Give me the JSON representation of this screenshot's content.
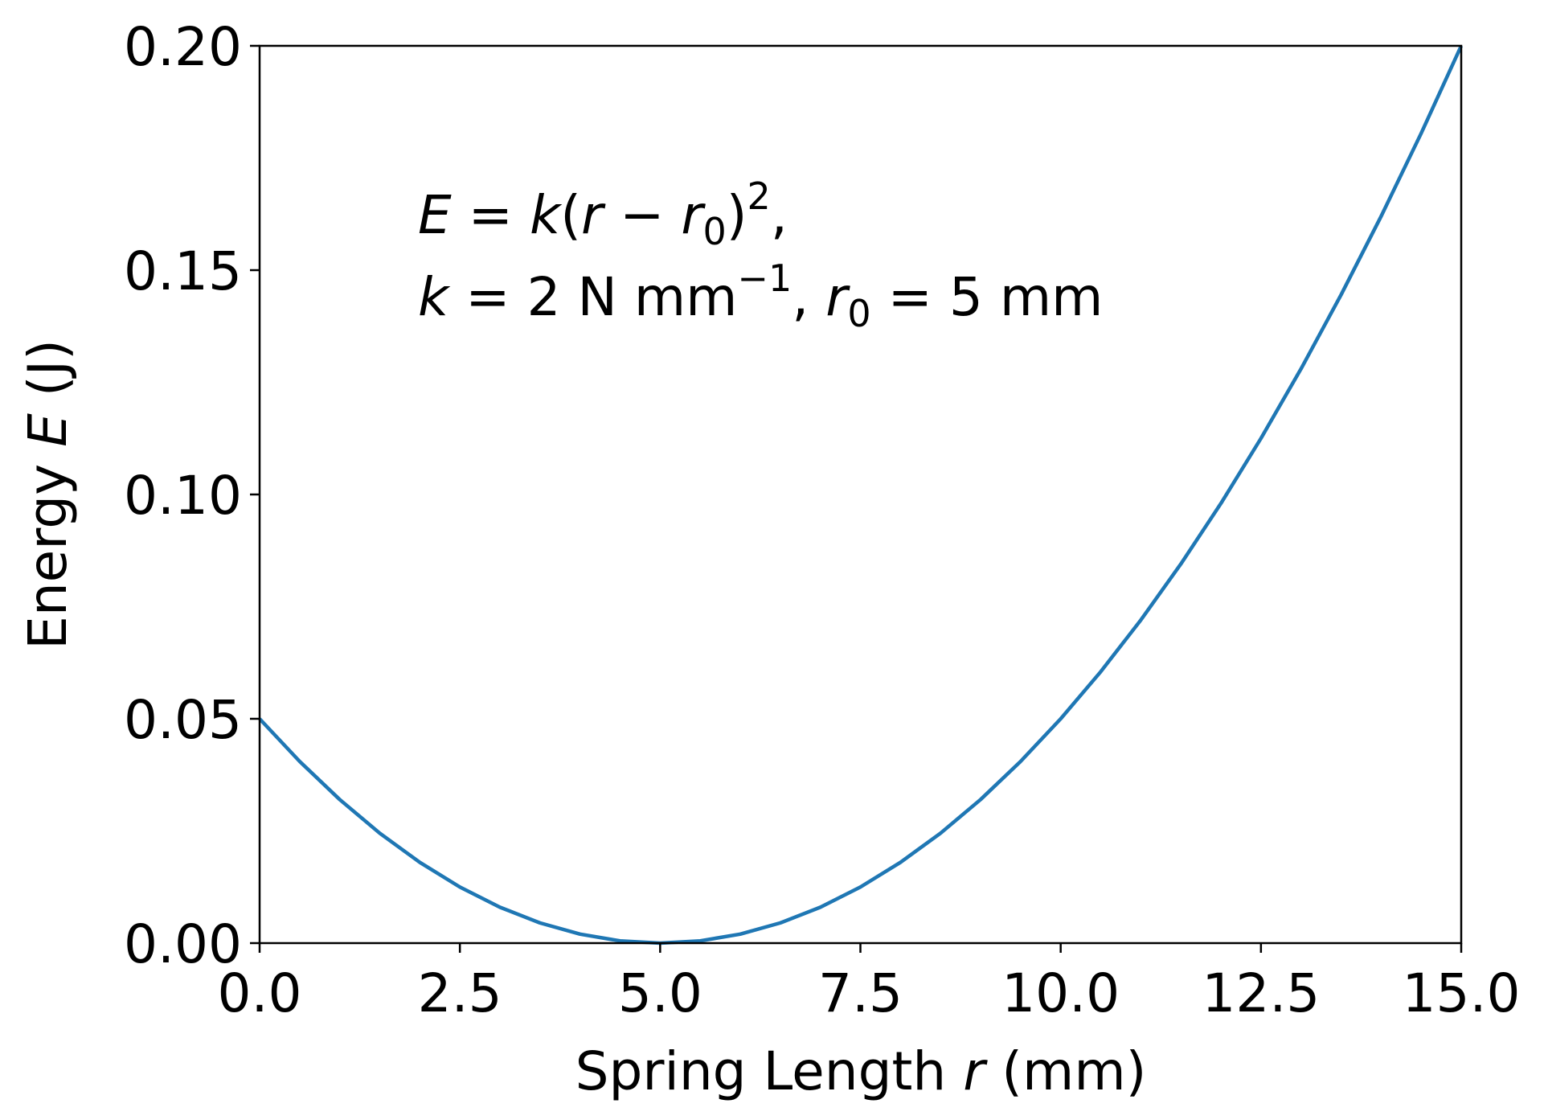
{
  "chart_data": {
    "type": "line",
    "title": "",
    "xlabel": {
      "prefix": "Spring Length ",
      "var": "r",
      "suffix": " (mm)"
    },
    "ylabel": {
      "prefix": "Energy ",
      "var": "E",
      "suffix": " (J)"
    },
    "xlim": [
      0,
      15
    ],
    "ylim": [
      0,
      0.2
    ],
    "x_ticks": [
      "0.0",
      "2.5",
      "5.0",
      "7.5",
      "10.0",
      "12.5",
      "15.0"
    ],
    "y_ticks": [
      "0.00",
      "0.05",
      "0.10",
      "0.15",
      "0.20"
    ],
    "grid": false,
    "legend": null,
    "annotation": {
      "line1": {
        "E": "E",
        "eq": " = ",
        "k": "k",
        "open": "(",
        "r": "r",
        "minus": " − ",
        "r0_var": "r",
        "r0_sub": "0",
        "close": ")",
        "sup": "2",
        "comma": ","
      },
      "line2": {
        "k": "k",
        "eq1": " = 2 N mm",
        "sup": "−1",
        "comma": ", ",
        "r0_var": "r",
        "r0_sub": "0",
        "eq2": " = 5 mm"
      }
    },
    "series": [
      {
        "color": "#1f77b4",
        "x": [
          0,
          0.5,
          1,
          1.5,
          2,
          2.5,
          3,
          3.5,
          4,
          4.5,
          5,
          5.5,
          6,
          6.5,
          7,
          7.5,
          8,
          8.5,
          9,
          9.5,
          10,
          10.5,
          11,
          11.5,
          12,
          12.5,
          13,
          13.5,
          14,
          14.5,
          15
        ],
        "y": [
          0.05,
          0.0405,
          0.032,
          0.0245,
          0.018,
          0.0125,
          0.008,
          0.0045,
          0.002,
          0.0005,
          0,
          0.0005,
          0.002,
          0.0045,
          0.008,
          0.0125,
          0.018,
          0.0245,
          0.032,
          0.0405,
          0.05,
          0.0605,
          0.072,
          0.0845,
          0.098,
          0.1125,
          0.128,
          0.1445,
          0.162,
          0.1805,
          0.2
        ]
      }
    ]
  }
}
